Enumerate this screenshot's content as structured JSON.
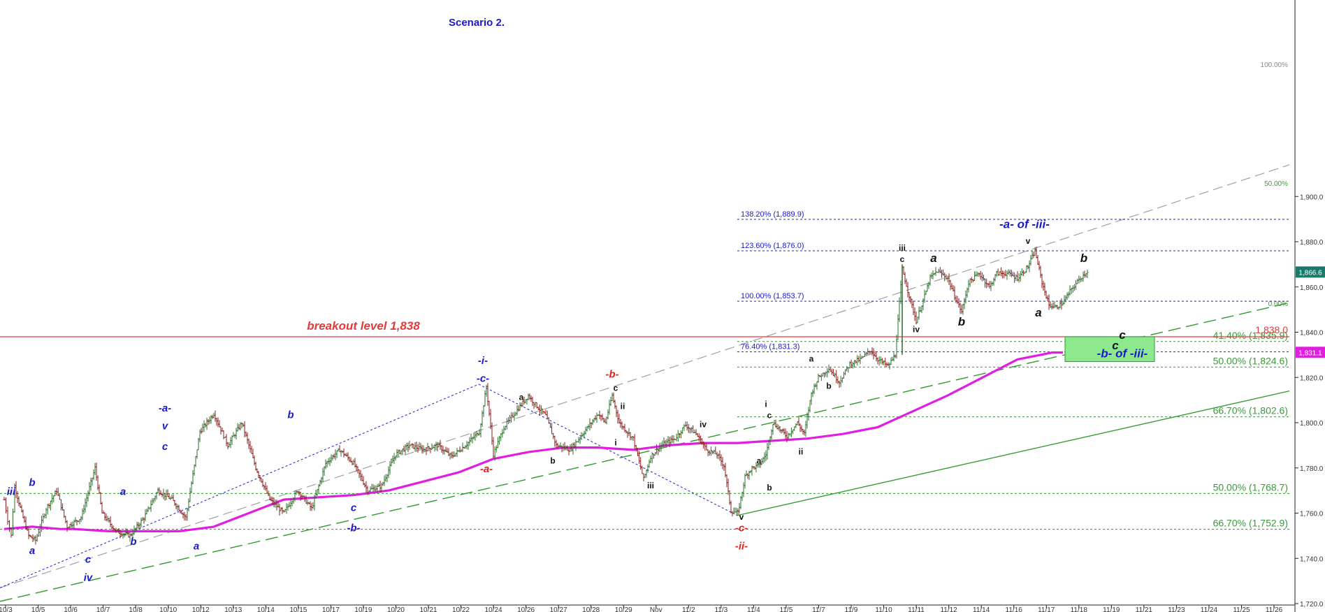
{
  "chart_data": {
    "type": "line",
    "title": "Scenario 2.",
    "ylim": [
      1710,
      1925
    ],
    "y_ticks": [
      1720,
      1740,
      1760,
      1780,
      1800,
      1820,
      1840,
      1860,
      1880,
      1900
    ],
    "y_tick_labels": [
      "1,720.0",
      "1,740.0",
      "1,760.0",
      "1,780.0",
      "1,800.0",
      "1,820.0",
      "1,840.0",
      "1,860.0",
      "1,880.0",
      "1,900.0"
    ],
    "x_tick_labels": [
      "10/3",
      "10/5",
      "10/6",
      "10/7",
      "10/8",
      "10/10",
      "10/12",
      "10/13",
      "10/14",
      "10/15",
      "10/17",
      "10/19",
      "10/20",
      "10/21",
      "10/22",
      "10/24",
      "10/26",
      "10/27",
      "10/28",
      "10/29",
      "Nov",
      "11/2",
      "11/3",
      "11/4",
      "11/5",
      "11/7",
      "11/9",
      "11/10",
      "11/11",
      "11/12",
      "11/14",
      "11/16",
      "11/17",
      "11/18",
      "11/19",
      "11/21",
      "11/23",
      "11/24",
      "11/25",
      "11/26"
    ],
    "grid": false,
    "price_path": [
      [
        0,
        1766
      ],
      [
        1,
        1757
      ],
      [
        2,
        1750
      ],
      [
        3,
        1772
      ],
      [
        5,
        1760
      ],
      [
        7,
        1750
      ],
      [
        9,
        1748
      ],
      [
        12,
        1762
      ],
      [
        15,
        1770
      ],
      [
        18,
        1754
      ],
      [
        22,
        1758
      ],
      [
        26,
        1780
      ],
      [
        28,
        1760
      ],
      [
        32,
        1752
      ],
      [
        36,
        1750
      ],
      [
        40,
        1758
      ],
      [
        44,
        1770
      ],
      [
        48,
        1766
      ],
      [
        52,
        1758
      ],
      [
        56,
        1796
      ],
      [
        60,
        1804
      ],
      [
        64,
        1790
      ],
      [
        68,
        1800
      ],
      [
        72,
        1780
      ],
      [
        76,
        1766
      ],
      [
        80,
        1760
      ],
      [
        84,
        1770
      ],
      [
        88,
        1762
      ],
      [
        92,
        1782
      ],
      [
        96,
        1788
      ],
      [
        100,
        1782
      ],
      [
        104,
        1770
      ],
      [
        108,
        1772
      ],
      [
        112,
        1786
      ],
      [
        116,
        1790
      ],
      [
        120,
        1788
      ],
      [
        124,
        1790
      ],
      [
        128,
        1785
      ],
      [
        132,
        1790
      ],
      [
        136,
        1796
      ],
      [
        138,
        1816
      ],
      [
        140,
        1786
      ],
      [
        143,
        1798
      ],
      [
        146,
        1804
      ],
      [
        150,
        1812
      ],
      [
        152,
        1808
      ],
      [
        155,
        1803
      ],
      [
        158,
        1790
      ],
      [
        162,
        1788
      ],
      [
        166,
        1796
      ],
      [
        170,
        1804
      ],
      [
        172,
        1800
      ],
      [
        174,
        1812
      ],
      [
        176,
        1800
      ],
      [
        180,
        1793
      ],
      [
        183,
        1775
      ],
      [
        185,
        1785
      ],
      [
        188,
        1790
      ],
      [
        192,
        1793
      ],
      [
        195,
        1799
      ],
      [
        198,
        1795
      ],
      [
        201,
        1788
      ],
      [
        204,
        1786
      ],
      [
        206,
        1781
      ],
      [
        208,
        1761
      ],
      [
        210,
        1760
      ],
      [
        212,
        1776
      ],
      [
        214,
        1780
      ],
      [
        216,
        1781
      ],
      [
        218,
        1786
      ],
      [
        220,
        1800
      ],
      [
        224,
        1794
      ],
      [
        227,
        1800
      ],
      [
        229,
        1795
      ],
      [
        231,
        1813
      ],
      [
        233,
        1820
      ],
      [
        236,
        1824
      ],
      [
        239,
        1818
      ],
      [
        242,
        1826
      ],
      [
        245,
        1828
      ],
      [
        248,
        1832
      ],
      [
        250,
        1828
      ],
      [
        253,
        1825
      ],
      [
        255,
        1830
      ],
      [
        257,
        1868
      ],
      [
        259,
        1856
      ],
      [
        261,
        1845
      ],
      [
        263,
        1854
      ],
      [
        265,
        1864
      ],
      [
        267,
        1867
      ],
      [
        270,
        1864
      ],
      [
        272,
        1856
      ],
      [
        274,
        1849
      ],
      [
        276,
        1862
      ],
      [
        279,
        1866
      ],
      [
        282,
        1860
      ],
      [
        284,
        1866
      ],
      [
        287,
        1866
      ],
      [
        290,
        1864
      ],
      [
        293,
        1869
      ],
      [
        295,
        1876
      ],
      [
        297,
        1862
      ],
      [
        299,
        1852
      ],
      [
        301,
        1851
      ],
      [
        303,
        1853
      ],
      [
        305,
        1858
      ],
      [
        308,
        1864
      ],
      [
        310,
        1867
      ]
    ],
    "ma_path": [
      [
        0,
        1753
      ],
      [
        8,
        1754
      ],
      [
        16,
        1753
      ],
      [
        20,
        1753
      ],
      [
        30,
        1752
      ],
      [
        40,
        1752
      ],
      [
        50,
        1752
      ],
      [
        60,
        1754
      ],
      [
        70,
        1760
      ],
      [
        80,
        1766
      ],
      [
        90,
        1767
      ],
      [
        100,
        1768
      ],
      [
        110,
        1770
      ],
      [
        120,
        1774
      ],
      [
        130,
        1778
      ],
      [
        140,
        1784
      ],
      [
        150,
        1787
      ],
      [
        160,
        1789
      ],
      [
        170,
        1789
      ],
      [
        180,
        1788
      ],
      [
        190,
        1790
      ],
      [
        200,
        1791
      ],
      [
        210,
        1791
      ],
      [
        220,
        1792
      ],
      [
        230,
        1793
      ],
      [
        240,
        1795
      ],
      [
        250,
        1798
      ],
      [
        260,
        1805
      ],
      [
        270,
        1812
      ],
      [
        280,
        1820
      ],
      [
        290,
        1828
      ],
      [
        300,
        1831
      ],
      [
        303,
        1831
      ]
    ],
    "fib_levels": [
      {
        "label": "138.20% (1,889.9)",
        "value": 1889.9,
        "group": "blue"
      },
      {
        "label": "123.60% (1,876.0)",
        "value": 1876.0,
        "group": "blue"
      },
      {
        "label": "100.00% (1,853.7)",
        "value": 1853.7,
        "group": "blue"
      },
      {
        "label": "76.40% (1,831.3)",
        "value": 1831.3,
        "group": "blue"
      },
      {
        "label": "41.40% (1,835.9)",
        "value": 1835.9,
        "group": "green"
      },
      {
        "label": "50.00% (1,824.6)",
        "value": 1824.6,
        "group": "green"
      },
      {
        "label": "66.70% (1,802.6)",
        "value": 1802.6,
        "group": "green"
      },
      {
        "label": "50.00% (1,768.7)",
        "value": 1768.7,
        "group": "green"
      },
      {
        "label": "66.70% (1,752.9)",
        "value": 1752.9,
        "group": "green"
      }
    ],
    "breakout": {
      "label": "breakout level 1,838",
      "value": 1838.0,
      "tag": "1,838.0"
    },
    "last_price": {
      "label": "1,866.6",
      "value": 1866.6
    },
    "ma_last": {
      "label": "1,831.1",
      "value": 1831.1
    },
    "channel_labels": [
      "100.00%",
      "50.00%",
      "0.00%"
    ],
    "target_box": {
      "label_c": "c",
      "label_b": "-b- of -iii-",
      "top": 1838,
      "bottom": 1827
    },
    "wave_labels": [
      {
        "t": "iii",
        "x": 2,
        "y": 1768,
        "c": "blue",
        "s": 15
      },
      {
        "t": "b",
        "x": 8,
        "y": 1772,
        "c": "blue",
        "s": 15
      },
      {
        "t": "a",
        "x": 8,
        "y": 1742,
        "c": "blue",
        "s": 15
      },
      {
        "t": "-a-",
        "x": 46,
        "y": 1805,
        "c": "blue",
        "s": 15
      },
      {
        "t": "v",
        "x": 46,
        "y": 1797,
        "c": "blue",
        "s": 15
      },
      {
        "t": "c",
        "x": 46,
        "y": 1788,
        "c": "blue",
        "s": 15
      },
      {
        "t": "a",
        "x": 34,
        "y": 1768,
        "c": "blue",
        "s": 15
      },
      {
        "t": "b",
        "x": 37,
        "y": 1746,
        "c": "blue",
        "s": 15
      },
      {
        "t": "c",
        "x": 24,
        "y": 1738,
        "c": "blue",
        "s": 15
      },
      {
        "t": "iv",
        "x": 24,
        "y": 1730,
        "c": "blue",
        "s": 15
      },
      {
        "t": "a",
        "x": 55,
        "y": 1744,
        "c": "blue",
        "s": 15
      },
      {
        "t": "b",
        "x": 82,
        "y": 1802,
        "c": "blue",
        "s": 15
      },
      {
        "t": "c",
        "x": 100,
        "y": 1761,
        "c": "blue",
        "s": 15
      },
      {
        "t": "-b-",
        "x": 100,
        "y": 1752,
        "c": "blue",
        "s": 15
      },
      {
        "t": "-i-",
        "x": 137,
        "y": 1826,
        "c": "blue",
        "s": 15
      },
      {
        "t": "-c-",
        "x": 137,
        "y": 1818,
        "c": "blue",
        "s": 15
      },
      {
        "t": "-a-",
        "x": 138,
        "y": 1778,
        "c": "red",
        "s": 15
      },
      {
        "t": "-b-",
        "x": 174,
        "y": 1820,
        "c": "red",
        "s": 15
      },
      {
        "t": "-c-",
        "x": 211,
        "y": 1752,
        "c": "red",
        "s": 15
      },
      {
        "t": "-ii-",
        "x": 211,
        "y": 1744,
        "c": "red",
        "s": 15
      },
      {
        "t": "-a- of -iii-",
        "x": 292,
        "y": 1886,
        "c": "blue",
        "s": 17
      }
    ],
    "sub_labels": [
      {
        "t": "a",
        "x": 148,
        "y": 1810
      },
      {
        "t": "b",
        "x": 157,
        "y": 1782
      },
      {
        "t": "c",
        "x": 175,
        "y": 1814
      },
      {
        "t": "ii",
        "x": 177,
        "y": 1806
      },
      {
        "t": "i",
        "x": 175,
        "y": 1790
      },
      {
        "t": "iii",
        "x": 185,
        "y": 1771
      },
      {
        "t": "iv",
        "x": 200,
        "y": 1798
      },
      {
        "t": "v",
        "x": 211,
        "y": 1757
      },
      {
        "t": "a",
        "x": 216,
        "y": 1782
      },
      {
        "t": "b",
        "x": 219,
        "y": 1770
      },
      {
        "t": "i",
        "x": 218,
        "y": 1807
      },
      {
        "t": "c",
        "x": 219,
        "y": 1802
      },
      {
        "t": "ii",
        "x": 228,
        "y": 1786
      },
      {
        "t": "a",
        "x": 231,
        "y": 1827
      },
      {
        "t": "b",
        "x": 236,
        "y": 1815
      },
      {
        "t": "iii",
        "x": 257,
        "y": 1876
      },
      {
        "t": "c",
        "x": 257,
        "y": 1871
      },
      {
        "t": "iv",
        "x": 261,
        "y": 1840
      },
      {
        "t": "v",
        "x": 293,
        "y": 1879
      }
    ],
    "big_labels": [
      {
        "t": "a",
        "x": 266,
        "y": 1871
      },
      {
        "t": "b",
        "x": 274,
        "y": 1843
      },
      {
        "t": "a",
        "x": 296,
        "y": 1847
      },
      {
        "t": "b",
        "x": 309,
        "y": 1871
      },
      {
        "t": "c",
        "x": 320,
        "y": 1837
      }
    ]
  }
}
